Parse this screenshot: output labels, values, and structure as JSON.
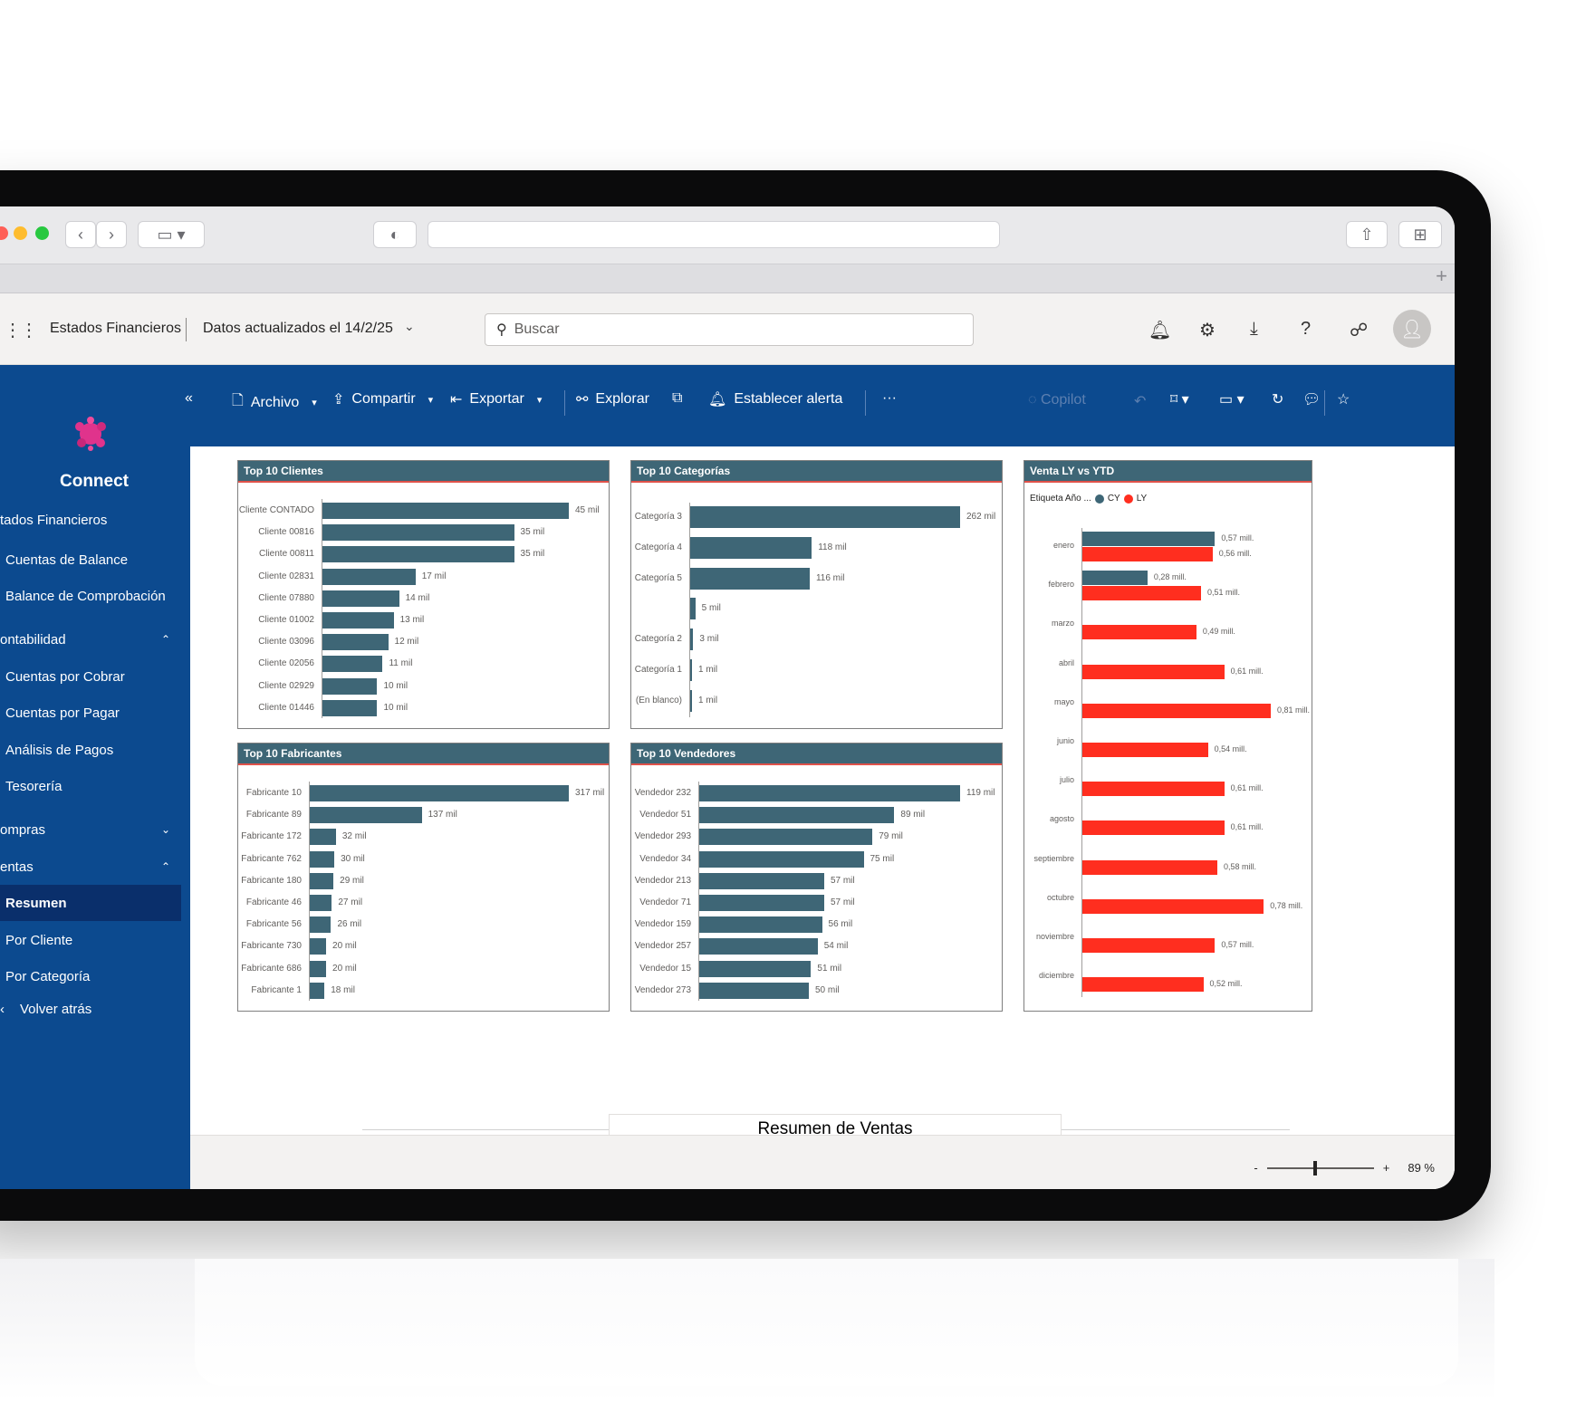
{
  "header": {
    "title": "Estados Financieros",
    "updated": "Datos actualizados el 14/2/25",
    "search_placeholder": "Buscar"
  },
  "sidebar": {
    "brand": "Connect",
    "items": [
      {
        "label": "tados Financieros",
        "y": 0
      },
      {
        "label": "Cuentas de Balance"
      },
      {
        "label": "Balance de Comprobación"
      },
      {
        "label": "ontabilidad"
      },
      {
        "label": "Cuentas por Cobrar"
      },
      {
        "label": "Cuentas por Pagar"
      },
      {
        "label": "Análisis de Pagos"
      },
      {
        "label": "Tesorería"
      },
      {
        "label": "ompras"
      },
      {
        "label": "entas"
      },
      {
        "label": "Resumen"
      },
      {
        "label": "Por Cliente"
      },
      {
        "label": "Por Categoría"
      },
      {
        "label": "Volver atrás"
      }
    ]
  },
  "toolbar": {
    "archivo": "Archivo",
    "compartir": "Compartir",
    "exportar": "Exportar",
    "explorar": "Explorar",
    "alerta": "Establecer alerta",
    "more": "···",
    "copilot": "Copilot"
  },
  "page_title": "Resumen de Ventas",
  "zoom": {
    "minus": "-",
    "plus": "+",
    "level": "89 %",
    "fraction": 0.45
  },
  "colors": {
    "accent": "#0c4a8f",
    "bar": "#3e6676",
    "ly": "#ff2e1f",
    "title_underline": "#e0524a"
  },
  "chart_data": [
    {
      "type": "bar",
      "title": "Top 10 Clientes",
      "categories": [
        "Cliente CONTADO",
        "Cliente 00816",
        "Cliente 00811",
        "Cliente 02831",
        "Cliente 07880",
        "Cliente 01002",
        "Cliente 03096",
        "Cliente 02056",
        "Cliente 02929",
        "Cliente 01446"
      ],
      "values": [
        45,
        35,
        35,
        17,
        14,
        13,
        12,
        11,
        10,
        10
      ],
      "labels": [
        "45 mil",
        "35 mil",
        "35 mil",
        "17 mil",
        "14 mil",
        "13 mil",
        "12 mil",
        "11 mil",
        "10 mil",
        "10 mil"
      ],
      "xmax": 45
    },
    {
      "type": "bar",
      "title": "Top 10 Categorías",
      "categories": [
        "Categoría 3",
        "Categoría 4",
        "Categoría 5",
        "",
        "Categoría 2",
        "Categoría 1",
        "(En blanco)"
      ],
      "values": [
        262,
        118,
        116,
        5,
        3,
        1,
        1
      ],
      "labels": [
        "262 mil",
        "118 mil",
        "116 mil",
        "5 mil",
        "3 mil",
        "1 mil",
        "1 mil"
      ],
      "xmax": 262
    },
    {
      "type": "bar",
      "title": "Top 10 Fabricantes",
      "categories": [
        "Fabricante 10",
        "Fabricante 89",
        "Fabricante 172",
        "Fabricante 762",
        "Fabricante 180",
        "Fabricante 46",
        "Fabricante 56",
        "Fabricante 730",
        "Fabricante 686",
        "Fabricante 1"
      ],
      "values": [
        317,
        137,
        32,
        30,
        29,
        27,
        26,
        20,
        20,
        18
      ],
      "labels": [
        "317 mil",
        "137 mil",
        "32 mil",
        "30 mil",
        "29 mil",
        "27 mil",
        "26 mil",
        "20 mil",
        "20 mil",
        "18 mil"
      ],
      "xmax": 317
    },
    {
      "type": "bar",
      "title": "Top 10 Vendedores",
      "categories": [
        "Vendedor 232",
        "Vendedor 51",
        "Vendedor 293",
        "Vendedor 34",
        "Vendedor 213",
        "Vendedor 71",
        "Vendedor 159",
        "Vendedor 257",
        "Vendedor 15",
        "Vendedor 273"
      ],
      "values": [
        119,
        89,
        79,
        75,
        57,
        57,
        56,
        54,
        51,
        50
      ],
      "labels": [
        "119 mil",
        "89 mil",
        "79 mil",
        "75 mil",
        "57 mil",
        "57 mil",
        "56 mil",
        "54 mil",
        "51 mil",
        "50 mil"
      ],
      "xmax": 119
    },
    {
      "type": "bar",
      "title": "Venta LY vs YTD",
      "legend_title": "Etiqueta Año ...",
      "legend": [
        "CY",
        "LY"
      ],
      "categories": [
        "enero",
        "febrero",
        "marzo",
        "abril",
        "mayo",
        "junio",
        "julio",
        "agosto",
        "septiembre",
        "octubre",
        "noviembre",
        "diciembre"
      ],
      "series": [
        {
          "name": "CY",
          "values": [
            0.57,
            0.28,
            null,
            null,
            null,
            null,
            null,
            null,
            null,
            null,
            null,
            null
          ],
          "labels": [
            "0,57 mill.",
            "0,28 mill.",
            "",
            "",
            "",
            "",
            "",
            "",
            "",
            "",
            "",
            ""
          ]
        },
        {
          "name": "LY",
          "values": [
            0.56,
            0.51,
            0.49,
            0.61,
            0.81,
            0.54,
            0.61,
            0.61,
            0.58,
            0.78,
            0.57,
            0.52
          ],
          "labels": [
            "0,56 mill.",
            "0,51 mill.",
            "0,49 mill.",
            "0,61 mill.",
            "0,81 mill.",
            "0,54 mill.",
            "0,61 mill.",
            "0,61 mill.",
            "0,58 mill.",
            "0,78 mill.",
            "0,57 mill.",
            "0,52 mill."
          ]
        }
      ],
      "xmax": 0.81
    }
  ]
}
